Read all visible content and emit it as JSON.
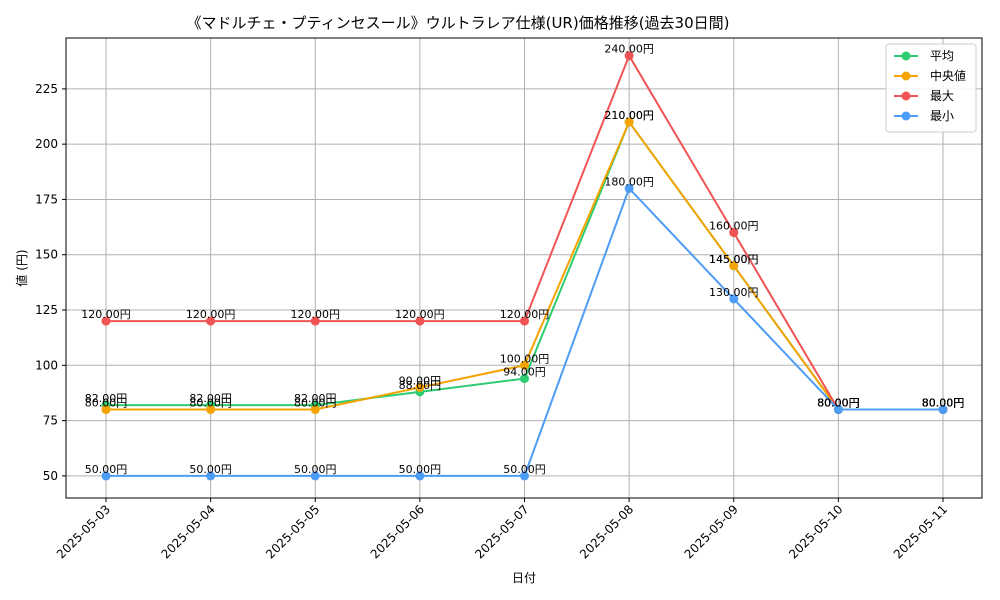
{
  "chart_data": {
    "type": "line",
    "title": "《マドルチェ・プティンセスール》ウルトラレア仕様(UR)価格推移(過去30日間)",
    "xlabel": "日付",
    "ylabel": "値 (円)",
    "categories": [
      "2025-05-03",
      "2025-05-04",
      "2025-05-05",
      "2025-05-06",
      "2025-05-07",
      "2025-05-08",
      "2025-05-09",
      "2025-05-10",
      "2025-05-11"
    ],
    "ylim": [
      40,
      248
    ],
    "yticks": [
      50,
      75,
      100,
      125,
      150,
      175,
      200,
      225
    ],
    "grid": true,
    "legend_position": "top-right",
    "series": [
      {
        "name": "平均",
        "color": "#2ecc71",
        "values": [
          82,
          82,
          82,
          88,
          94,
          210,
          145,
          80,
          80
        ]
      },
      {
        "name": "中央値",
        "color": "#f5a300",
        "values": [
          80,
          80,
          80,
          90,
          100,
          210,
          145,
          80,
          80
        ]
      },
      {
        "name": "最大",
        "color": "#f05454",
        "values": [
          120,
          120,
          120,
          120,
          120,
          240,
          160,
          80,
          80
        ]
      },
      {
        "name": "最小",
        "color": "#4d9cf5",
        "values": [
          50,
          50,
          50,
          50,
          50,
          180,
          130,
          80,
          80
        ]
      }
    ],
    "value_suffix": "円"
  }
}
